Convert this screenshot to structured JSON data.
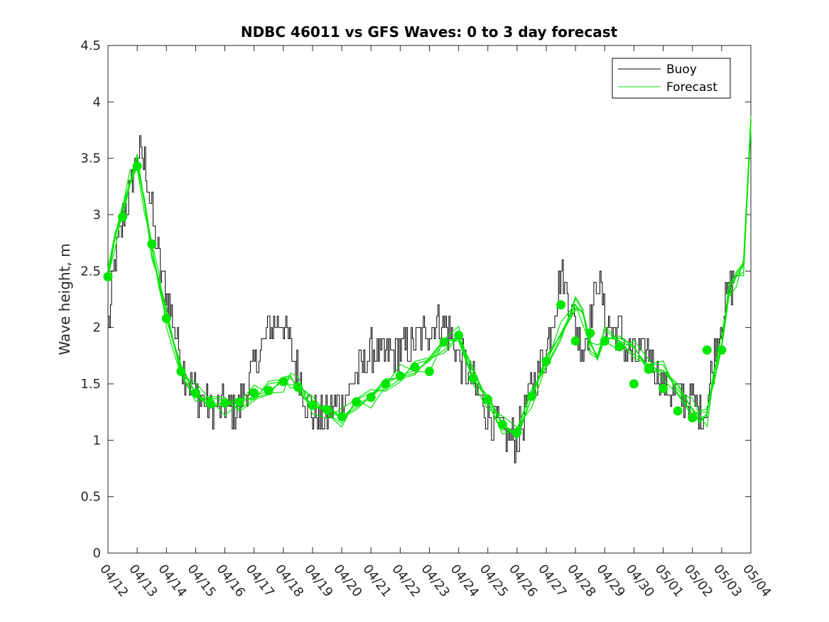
{
  "chart_data": {
    "type": "line",
    "title": "NDBC 46011 vs GFS Waves: 0 to 3 day forecast",
    "ylabel": "Wave height, m",
    "xlabel": "",
    "x_unit": "days since 04/12",
    "xlim": [
      0,
      22
    ],
    "ylim": [
      0,
      4.5
    ],
    "yticks": [
      0,
      0.5,
      1,
      1.5,
      2,
      2.5,
      3,
      3.5,
      4,
      4.5
    ],
    "ytick_labels": [
      "0",
      "0.5",
      "1",
      "1.5",
      "2",
      "2.5",
      "3",
      "3.5",
      "4",
      "4.5"
    ],
    "xtick_labels": [
      "04/12",
      "04/13",
      "04/14",
      "04/15",
      "04/16",
      "04/17",
      "04/18",
      "04/19",
      "04/20",
      "04/21",
      "04/22",
      "04/23",
      "04/24",
      "04/25",
      "04/26",
      "04/27",
      "04/28",
      "04/29",
      "04/30",
      "05/01",
      "05/02",
      "05/03",
      "05/04"
    ],
    "legend": {
      "placement": "top-right",
      "entries": [
        {
          "label": "Buoy",
          "color": "#000000"
        },
        {
          "label": "Forecast",
          "color": "#00e600"
        }
      ]
    },
    "colors": {
      "buoy": "#000000",
      "forecast": "#00e600",
      "analysis_marker": "#00e600"
    },
    "series": [
      {
        "name": "Buoy",
        "x": [
          0,
          0.25,
          0.5,
          0.75,
          1,
          1.25,
          1.5,
          1.75,
          2,
          2.5,
          3,
          3.5,
          4,
          4.5,
          5,
          5.5,
          6,
          6.5,
          6.75,
          7,
          7.25,
          7.5,
          8,
          8.5,
          9,
          9.5,
          10,
          10.5,
          11,
          11.5,
          12,
          12.5,
          13,
          13.5,
          14,
          14.5,
          15,
          15.5,
          16,
          16.25,
          16.5,
          16.75,
          17,
          17.25,
          17.5,
          17.75,
          18,
          18.5,
          19,
          19.5,
          20,
          20.25,
          20.5,
          20.75,
          21,
          21.25,
          21.5
        ],
        "values": [
          2.0,
          2.6,
          2.95,
          3.2,
          3.55,
          3.45,
          3.0,
          2.55,
          2.3,
          1.7,
          1.4,
          1.3,
          1.27,
          1.3,
          1.65,
          2.0,
          2.05,
          1.6,
          1.35,
          1.25,
          1.2,
          1.22,
          1.35,
          1.6,
          1.8,
          1.75,
          1.8,
          1.85,
          2.0,
          2.05,
          1.75,
          1.5,
          1.25,
          1.05,
          1.0,
          1.5,
          1.8,
          2.5,
          2.0,
          1.8,
          2.1,
          2.45,
          2.1,
          1.95,
          2.0,
          1.8,
          1.75,
          1.8,
          1.5,
          1.4,
          1.35,
          1.25,
          1.3,
          1.8,
          2.1,
          2.3,
          2.5
        ]
      },
      {
        "name": "Forecast",
        "x": [
          0,
          0.25,
          0.5,
          0.75,
          1,
          1.25,
          1.5,
          1.75,
          2,
          2.5,
          3,
          3.5,
          4,
          4.5,
          5,
          5.5,
          6,
          6.25,
          6.5,
          7,
          7.5,
          8,
          8.5,
          9,
          9.5,
          10,
          10.5,
          11,
          11.5,
          12,
          12.5,
          13,
          13.5,
          14,
          14.5,
          15,
          15.5,
          16,
          16.25,
          16.5,
          16.75,
          17,
          17.5,
          18,
          18.5,
          19,
          19.5,
          20,
          20.25,
          20.5,
          20.75,
          21,
          21.25,
          21.5,
          21.75,
          22
        ],
        "values": [
          2.45,
          2.8,
          3.05,
          3.3,
          3.45,
          3.1,
          2.7,
          2.4,
          2.08,
          1.62,
          1.42,
          1.33,
          1.32,
          1.33,
          1.39,
          1.44,
          1.52,
          1.55,
          1.48,
          1.3,
          1.26,
          1.2,
          1.32,
          1.38,
          1.5,
          1.57,
          1.62,
          1.7,
          1.86,
          1.92,
          1.55,
          1.35,
          1.14,
          1.06,
          1.38,
          1.7,
          1.95,
          2.2,
          2.12,
          1.85,
          1.75,
          1.92,
          1.88,
          1.82,
          1.65,
          1.62,
          1.45,
          1.28,
          1.2,
          1.22,
          1.6,
          1.85,
          2.3,
          2.45,
          2.55,
          3.8
        ]
      }
    ],
    "analysis_points": {
      "name": "Forecast analysis (0 h)",
      "x": [
        0,
        0.5,
        1,
        1.5,
        2,
        2.5,
        3,
        3.5,
        4,
        4.5,
        5,
        5.5,
        6,
        6.5,
        7,
        7.5,
        8,
        8.5,
        9,
        9.5,
        10,
        10.5,
        11,
        11.5,
        12,
        12.5,
        13,
        13.5,
        14,
        14.5,
        15,
        15.5,
        16,
        16.5,
        17,
        17.5,
        18,
        18.5,
        19,
        19.5,
        20,
        20.5,
        21
      ],
      "values": [
        2.45,
        2.98,
        3.43,
        2.74,
        2.08,
        1.61,
        1.42,
        1.33,
        1.33,
        1.34,
        1.42,
        1.44,
        1.52,
        1.47,
        1.31,
        1.27,
        1.21,
        1.34,
        1.38,
        1.5,
        1.57,
        1.65,
        1.61,
        1.87,
        1.93,
        1.55,
        1.36,
        1.14,
        1.07,
        1.39,
        1.7,
        2.2,
        1.88,
        1.95,
        1.88,
        1.83,
        1.5,
        1.63,
        1.46,
        1.26,
        1.2,
        1.8,
        1.8
      ]
    }
  }
}
